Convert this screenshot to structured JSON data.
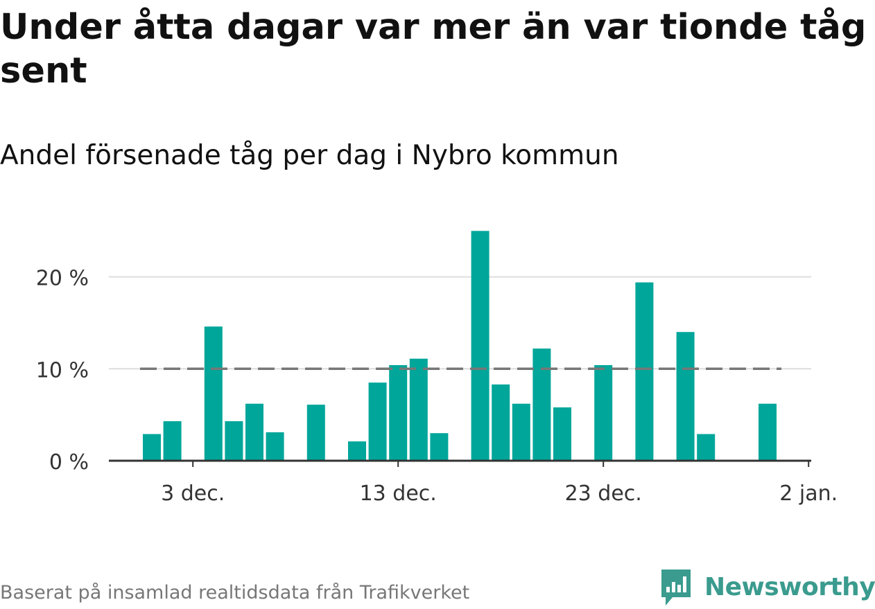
{
  "title": "Under åtta dagar var mer än var tionde tåg sent",
  "subtitle": "Andel försenade tåg per dag i Nybro kommun",
  "source": "Baserat på insamlad realtidsdata från Trafikverket",
  "brand": {
    "name": "Newsworthy",
    "color": "#3a9b8e",
    "icon": "newsworthy-logo-icon"
  },
  "colors": {
    "bar": "#00a69a",
    "reference_line": "#777777",
    "grid": "#dddddd",
    "axis": "#333333"
  },
  "chart_data": {
    "type": "bar",
    "x": [
      "2023-12-01",
      "2023-12-02",
      "2023-12-03",
      "2023-12-04",
      "2023-12-05",
      "2023-12-06",
      "2023-12-07",
      "2023-12-08",
      "2023-12-09",
      "2023-12-10",
      "2023-12-11",
      "2023-12-12",
      "2023-12-13",
      "2023-12-14",
      "2023-12-15",
      "2023-12-16",
      "2023-12-17",
      "2023-12-18",
      "2023-12-19",
      "2023-12-20",
      "2023-12-21",
      "2023-12-22",
      "2023-12-23",
      "2023-12-24",
      "2023-12-25",
      "2023-12-26",
      "2023-12-27",
      "2023-12-28",
      "2023-12-29",
      "2023-12-30",
      "2023-12-31",
      "2024-01-01"
    ],
    "values": [
      2.9,
      4.3,
      0,
      14.6,
      4.3,
      6.2,
      3.1,
      0,
      6.1,
      0,
      2.1,
      8.5,
      10.4,
      11.1,
      3.0,
      0,
      25.0,
      8.3,
      6.2,
      12.2,
      5.8,
      0,
      10.4,
      0,
      19.4,
      0,
      14.0,
      2.9,
      0,
      0,
      6.2,
      0
    ],
    "reference_line": {
      "value": 10,
      "style": "dashed"
    },
    "ylim": [
      0,
      25
    ],
    "yticks": [
      {
        "value": 0,
        "label": "0 %"
      },
      {
        "value": 10,
        "label": "10 %"
      },
      {
        "value": 20,
        "label": "20 %"
      }
    ],
    "xticks": [
      {
        "x": "2023-12-03",
        "label": "3 dec."
      },
      {
        "x": "2023-12-13",
        "label": "13 dec."
      },
      {
        "x": "2023-12-23",
        "label": "23 dec."
      },
      {
        "x": "2024-01-02",
        "label": "2 jan."
      }
    ],
    "grid": true,
    "xlabel": "",
    "ylabel": ""
  }
}
